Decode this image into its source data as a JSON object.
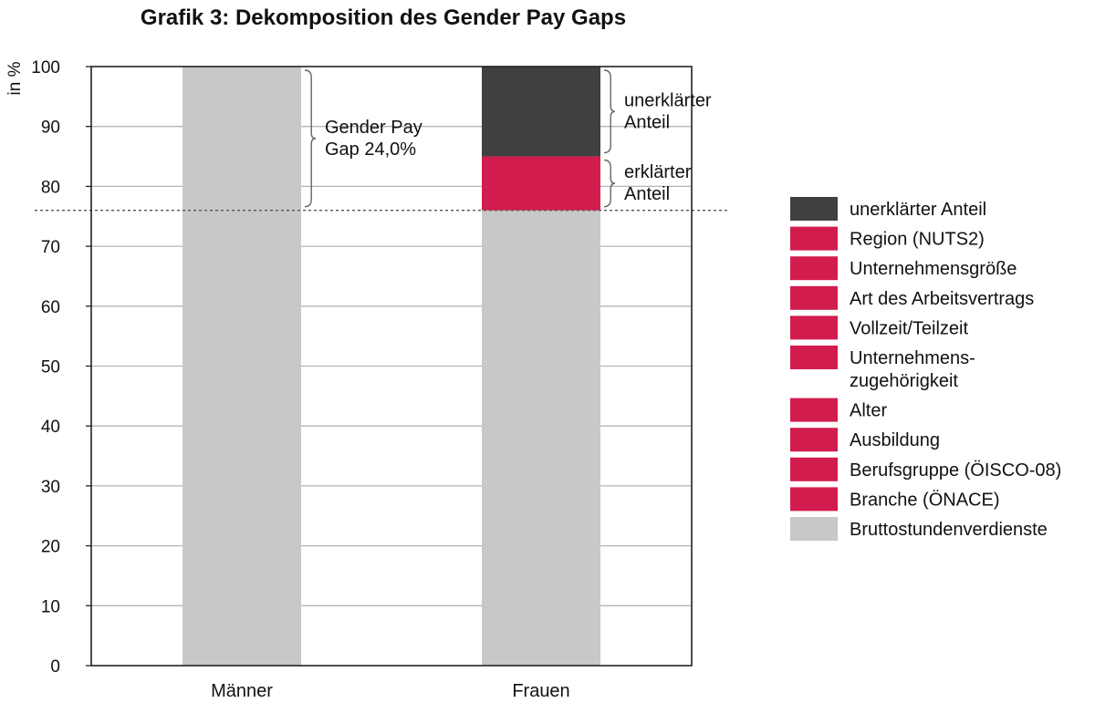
{
  "chart_data": {
    "type": "bar",
    "stacked": true,
    "title": "Grafik 3: Dekomposition des Gender Pay Gaps",
    "ylabel": "in %",
    "xlabel": "",
    "ylim": [
      0,
      100
    ],
    "yticks": [
      0,
      10,
      20,
      30,
      40,
      50,
      60,
      70,
      80,
      90,
      100
    ],
    "grid": true,
    "legend_position": "right",
    "categories": [
      "Männer",
      "Frauen"
    ],
    "reference_line": {
      "y": 76,
      "style": "dotted"
    },
    "series": [
      {
        "name": "Bruttostundenverdienste",
        "values": [
          100,
          76
        ],
        "color": "#c8c8c8"
      },
      {
        "name": "erklärter Anteil",
        "values": [
          0,
          9
        ],
        "color": "#d21c4e"
      },
      {
        "name": "unerklärter Anteil",
        "values": [
          0,
          15
        ],
        "color": "#404040"
      }
    ],
    "legend": [
      {
        "label": "unerklärter Anteil",
        "color": "#404040"
      },
      {
        "label": "Region (NUTS2)",
        "color": "#d21c4e"
      },
      {
        "label": "Unternehmensgröße",
        "color": "#d21c4e"
      },
      {
        "label": "Art des Arbeitsvertrags",
        "color": "#d21c4e"
      },
      {
        "label": "Vollzeit/Teilzeit",
        "color": "#d21c4e"
      },
      {
        "label": [
          "Unternehmens-",
          "zugehörigkeit"
        ],
        "color": "#d21c4e"
      },
      {
        "label": "Alter",
        "color": "#d21c4e"
      },
      {
        "label": "Ausbildung",
        "color": "#d21c4e"
      },
      {
        "label": "Berufsgruppe (ÖISCO-08)",
        "color": "#d21c4e"
      },
      {
        "label": "Branche (ÖNACE)",
        "color": "#d21c4e"
      },
      {
        "label": "Bruttostundenverdienste",
        "color": "#c8c8c8"
      }
    ],
    "annotations": [
      {
        "id": "gap",
        "lines": [
          "Gender Pay",
          "Gap 24,0%"
        ],
        "from": 76,
        "to": 100,
        "category": "Männer"
      },
      {
        "id": "unexplained",
        "lines": [
          "unerklärter",
          "Anteil"
        ],
        "from": 85,
        "to": 100,
        "category": "Frauen"
      },
      {
        "id": "explained",
        "lines": [
          "erklärter",
          "Anteil"
        ],
        "from": 76,
        "to": 85,
        "category": "Frauen"
      }
    ]
  }
}
